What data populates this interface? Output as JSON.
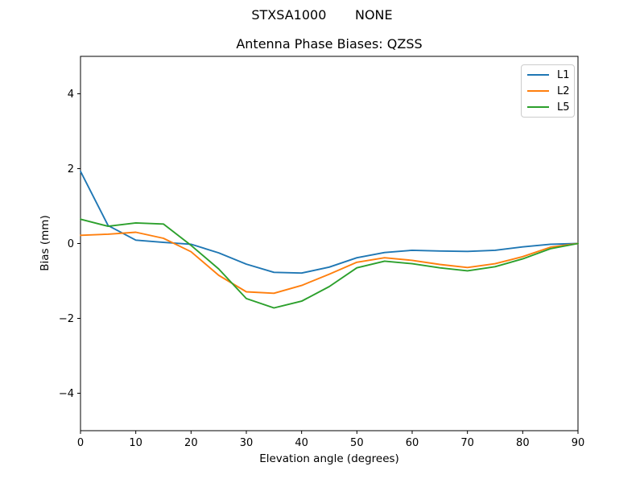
{
  "chart_data": {
    "type": "line",
    "suptitle": "STXSA1000       NONE",
    "title": "Antenna Phase Biases: QZSS",
    "xlabel": "Elevation angle (degrees)",
    "ylabel": "Bias (mm)",
    "xlim": [
      0,
      90
    ],
    "ylim": [
      -5,
      5
    ],
    "xticks": [
      0,
      10,
      20,
      30,
      40,
      50,
      60,
      70,
      80,
      90
    ],
    "yticks": [
      -4,
      -2,
      0,
      2,
      4
    ],
    "grid": false,
    "legend_position": "upper right",
    "x": [
      0,
      5,
      10,
      15,
      20,
      25,
      30,
      35,
      40,
      45,
      50,
      55,
      60,
      65,
      70,
      75,
      80,
      85,
      90
    ],
    "series": [
      {
        "name": "L1",
        "color": "#1f77b4",
        "values": [
          1.93,
          0.48,
          0.09,
          0.03,
          -0.02,
          -0.25,
          -0.55,
          -0.77,
          -0.79,
          -0.63,
          -0.38,
          -0.24,
          -0.18,
          -0.2,
          -0.21,
          -0.18,
          -0.09,
          -0.02,
          0.0
        ]
      },
      {
        "name": "L2",
        "color": "#ff7f0e",
        "values": [
          0.22,
          0.25,
          0.3,
          0.14,
          -0.22,
          -0.85,
          -1.29,
          -1.33,
          -1.12,
          -0.82,
          -0.5,
          -0.38,
          -0.45,
          -0.56,
          -0.64,
          -0.54,
          -0.35,
          -0.1,
          0.0
        ]
      },
      {
        "name": "L5",
        "color": "#2ca02c",
        "values": [
          0.65,
          0.46,
          0.55,
          0.52,
          -0.05,
          -0.68,
          -1.47,
          -1.72,
          -1.54,
          -1.15,
          -0.65,
          -0.47,
          -0.54,
          -0.65,
          -0.73,
          -0.62,
          -0.41,
          -0.14,
          0.0
        ]
      }
    ]
  },
  "colors": {
    "spine": "#000000",
    "tick_label": "#000000",
    "legend_border": "#cccccc",
    "background": "#ffffff"
  }
}
